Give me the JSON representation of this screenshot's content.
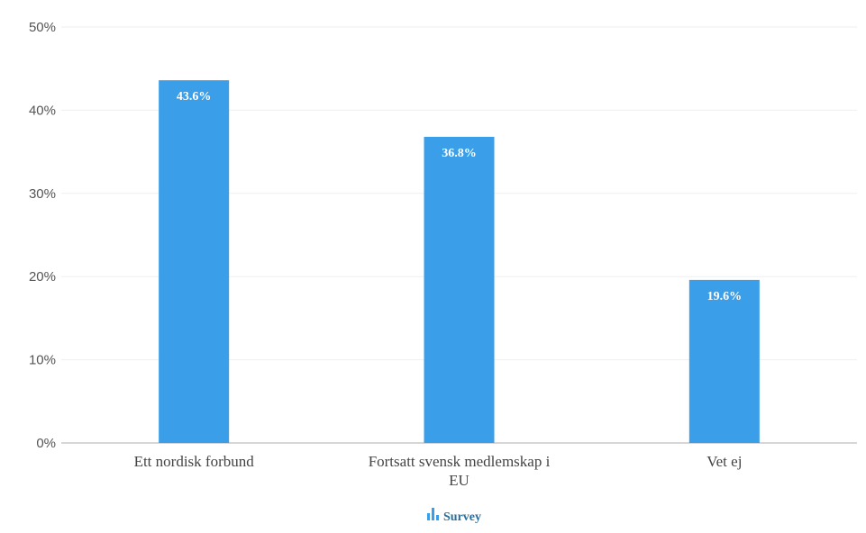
{
  "chart_data": {
    "type": "bar",
    "categories": [
      "Ett nordisk forbund",
      "Fortsatt svensk medlemskap i EU",
      "Vet ej"
    ],
    "series": [
      {
        "name": "Survey",
        "values": [
          43.6,
          36.8,
          19.6
        ]
      }
    ],
    "data_labels": [
      "43.6%",
      "36.8%",
      "19.6%"
    ],
    "yticks": [
      "0%",
      "10%",
      "20%",
      "30%",
      "40%",
      "50%"
    ],
    "ylim": [
      0,
      50
    ],
    "grid": true,
    "legend_position": "bottom-center",
    "bar_color": "#3a9ee8",
    "title": "",
    "xlabel": "",
    "ylabel": ""
  }
}
